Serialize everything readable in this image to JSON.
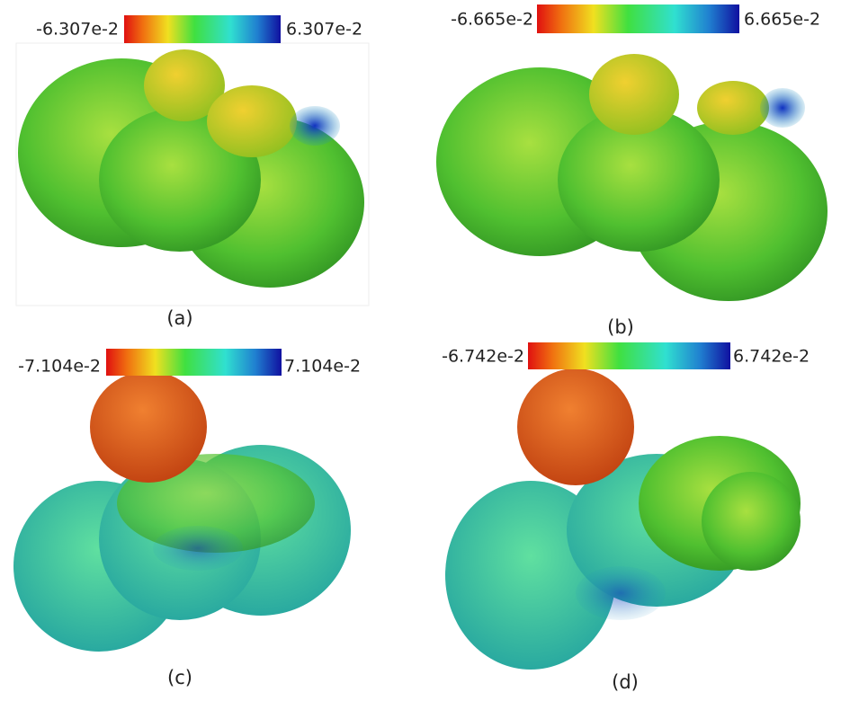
{
  "panels": [
    {
      "label": "(a)",
      "scale_min": "-6.307e-2",
      "scale_max": "6.307e-2"
    },
    {
      "label": "(b)",
      "scale_min": "-6.665e-2",
      "scale_max": "6.665e-2"
    },
    {
      "label": "(c)",
      "scale_min": "-7.104e-2",
      "scale_max": "7.104e-2"
    },
    {
      "label": "(d)",
      "scale_min": "-6.742e-2",
      "scale_max": "6.742e-2"
    }
  ]
}
